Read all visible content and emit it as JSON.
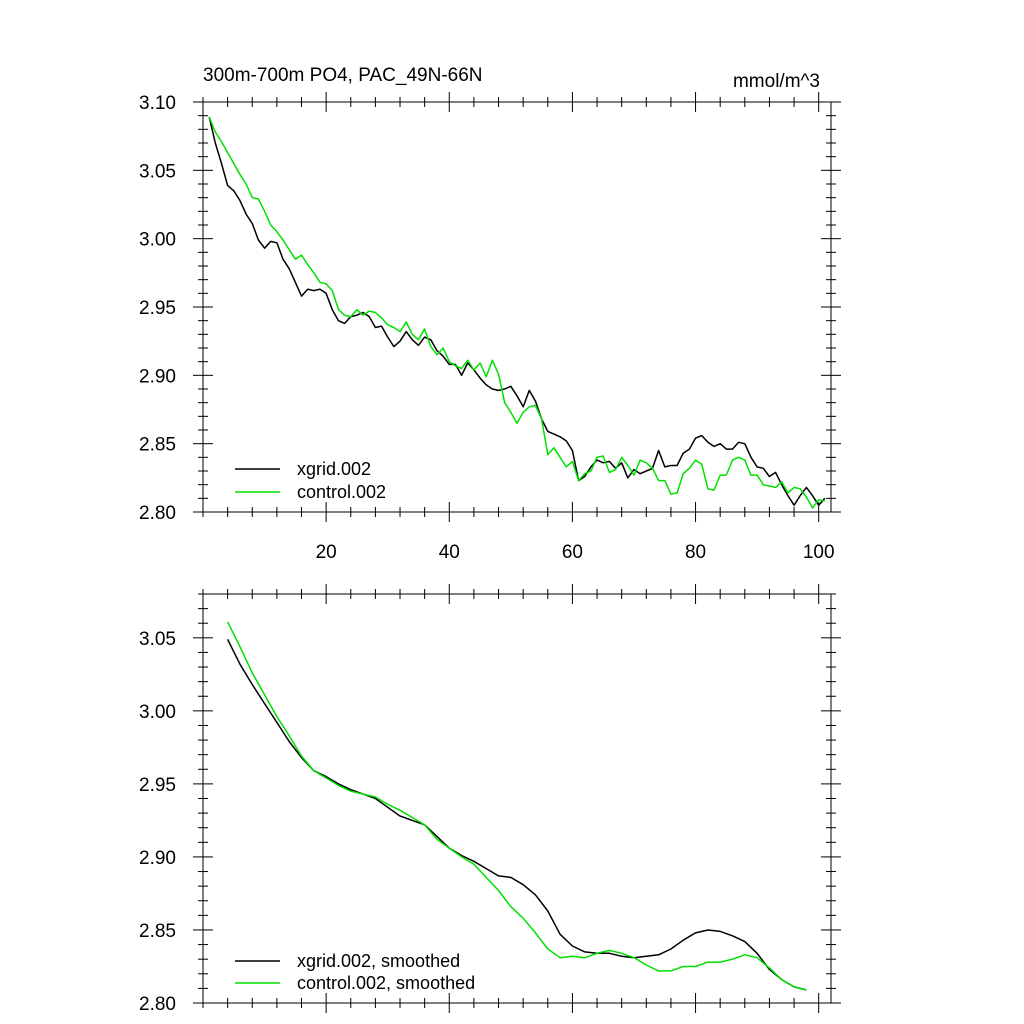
{
  "figure": {
    "title": "300m-700m PO4, PAC_49N-66N",
    "units": "mmol/m^3"
  },
  "chart_data": [
    {
      "type": "line",
      "title": "300m-700m PO4, PAC_49N-66N",
      "units_label": "mmol/m^3",
      "xlabel": "",
      "ylabel": "",
      "xlim": [
        0,
        102
      ],
      "ylim": [
        2.8,
        3.1
      ],
      "xticks": [
        20,
        40,
        60,
        80,
        100
      ],
      "yticks": [
        2.8,
        2.85,
        2.9,
        2.95,
        3.0,
        3.05,
        3.1
      ],
      "ytick_labels": [
        "2.80",
        "2.85",
        "2.90",
        "2.95",
        "3.00",
        "3.05",
        "3.10"
      ],
      "xtick_labels": [
        "20",
        "40",
        "60",
        "80",
        "100"
      ],
      "show_x_labels": true,
      "legend_position": "bottom-left",
      "x": [
        1,
        2,
        3,
        4,
        5,
        6,
        7,
        8,
        9,
        10,
        11,
        12,
        13,
        14,
        15,
        16,
        17,
        18,
        19,
        20,
        21,
        22,
        23,
        24,
        25,
        26,
        27,
        28,
        29,
        30,
        31,
        32,
        33,
        34,
        35,
        36,
        37,
        38,
        39,
        40,
        41,
        42,
        43,
        44,
        45,
        46,
        47,
        48,
        49,
        50,
        51,
        52,
        53,
        54,
        55,
        56,
        57,
        58,
        59,
        60,
        61,
        62,
        63,
        64,
        65,
        66,
        67,
        68,
        69,
        70,
        71,
        72,
        73,
        74,
        75,
        76,
        77,
        78,
        79,
        80,
        81,
        82,
        83,
        84,
        85,
        86,
        87,
        88,
        89,
        90,
        91,
        92,
        93,
        94,
        95,
        96,
        97,
        98,
        99,
        100,
        101
      ],
      "series": [
        {
          "name": "xgrid.002",
          "color": "#000000",
          "values": [
            3.089,
            3.07,
            3.055,
            3.039,
            3.035,
            3.028,
            3.018,
            3.011,
            2.999,
            2.993,
            2.998,
            2.997,
            2.985,
            2.978,
            2.968,
            2.958,
            2.963,
            2.962,
            2.963,
            2.96,
            2.948,
            2.94,
            2.938,
            2.943,
            2.944,
            2.946,
            2.943,
            2.935,
            2.936,
            2.928,
            2.921,
            2.925,
            2.932,
            2.926,
            2.922,
            2.928,
            2.926,
            2.918,
            2.914,
            2.908,
            2.908,
            2.9,
            2.909,
            2.904,
            2.898,
            2.893,
            2.89,
            2.889,
            2.89,
            2.892,
            2.885,
            2.877,
            2.889,
            2.881,
            2.868,
            2.859,
            2.857,
            2.855,
            2.852,
            2.845,
            2.823,
            2.826,
            2.833,
            2.838,
            2.836,
            2.837,
            2.832,
            2.836,
            2.825,
            2.831,
            2.828,
            2.83,
            2.832,
            2.845,
            2.833,
            2.834,
            2.834,
            2.843,
            2.846,
            2.854,
            2.856,
            2.851,
            2.848,
            2.85,
            2.846,
            2.846,
            2.851,
            2.85,
            2.84,
            2.833,
            2.832,
            2.826,
            2.829,
            2.82,
            2.812,
            2.805,
            2.812,
            2.818,
            2.812,
            2.805,
            2.81
          ]
        },
        {
          "name": "control.002",
          "color": "#00e000",
          "values": [
            3.089,
            3.078,
            3.071,
            3.063,
            3.055,
            3.047,
            3.04,
            3.03,
            3.029,
            3.02,
            3.01,
            3.005,
            2.999,
            2.992,
            2.985,
            2.988,
            2.981,
            2.975,
            2.968,
            2.967,
            2.962,
            2.948,
            2.944,
            2.943,
            2.948,
            2.944,
            2.947,
            2.946,
            2.942,
            2.937,
            2.935,
            2.932,
            2.939,
            2.93,
            2.926,
            2.934,
            2.921,
            2.915,
            2.92,
            2.91,
            2.907,
            2.905,
            2.911,
            2.904,
            2.909,
            2.899,
            2.911,
            2.901,
            2.88,
            2.873,
            2.865,
            2.873,
            2.877,
            2.878,
            2.868,
            2.842,
            2.847,
            2.84,
            2.833,
            2.837,
            2.823,
            2.828,
            2.83,
            2.84,
            2.841,
            2.829,
            2.831,
            2.84,
            2.834,
            2.827,
            2.838,
            2.836,
            2.832,
            2.823,
            2.823,
            2.813,
            2.814,
            2.828,
            2.832,
            2.838,
            2.835,
            2.817,
            2.816,
            2.827,
            2.827,
            2.838,
            2.84,
            2.838,
            2.827,
            2.827,
            2.82,
            2.819,
            2.818,
            2.822,
            2.814,
            2.818,
            2.817,
            2.811,
            2.803,
            2.809,
            2.808
          ]
        }
      ],
      "legend": [
        "xgrid.002",
        "control.002"
      ]
    },
    {
      "type": "line",
      "title": "",
      "xlabel": "",
      "ylabel": "",
      "xlim": [
        0,
        102
      ],
      "ylim": [
        2.8,
        3.08
      ],
      "xticks": [
        20,
        40,
        60,
        80,
        100
      ],
      "yticks": [
        2.8,
        2.85,
        2.9,
        2.95,
        3.0,
        3.05
      ],
      "ytick_labels": [
        "2.80",
        "2.85",
        "2.90",
        "2.95",
        "3.00",
        "3.05"
      ],
      "xtick_labels": [],
      "show_x_labels": false,
      "legend_position": "bottom-left",
      "x": [
        4,
        6,
        8,
        10,
        12,
        14,
        16,
        18,
        20,
        22,
        24,
        26,
        28,
        30,
        32,
        34,
        36,
        38,
        40,
        42,
        44,
        46,
        48,
        50,
        52,
        54,
        56,
        58,
        60,
        62,
        64,
        66,
        68,
        70,
        72,
        74,
        76,
        78,
        80,
        82,
        84,
        86,
        88,
        90,
        92,
        94,
        96,
        98
      ],
      "series": [
        {
          "name": "xgrid.002, smoothed",
          "color": "#000000",
          "values": [
            3.049,
            3.032,
            3.018,
            3.005,
            2.992,
            2.979,
            2.968,
            2.959,
            2.955,
            2.95,
            2.946,
            2.943,
            2.94,
            2.934,
            2.928,
            2.925,
            2.922,
            2.914,
            2.906,
            2.901,
            2.897,
            2.892,
            2.887,
            2.886,
            2.881,
            2.874,
            2.863,
            2.847,
            2.839,
            2.835,
            2.834,
            2.834,
            2.832,
            2.831,
            2.832,
            2.833,
            2.837,
            2.843,
            2.848,
            2.85,
            2.849,
            2.846,
            2.842,
            2.834,
            2.823,
            2.816,
            2.811,
            2.809
          ]
        },
        {
          "name": "control.002, smoothed",
          "color": "#00e000",
          "values": [
            3.061,
            3.044,
            3.026,
            3.011,
            2.996,
            2.983,
            2.969,
            2.959,
            2.954,
            2.949,
            2.945,
            2.943,
            2.941,
            2.936,
            2.932,
            2.927,
            2.922,
            2.912,
            2.906,
            2.9,
            2.895,
            2.886,
            2.877,
            2.866,
            2.858,
            2.848,
            2.837,
            2.831,
            2.832,
            2.831,
            2.834,
            2.836,
            2.834,
            2.831,
            2.826,
            2.822,
            2.822,
            2.825,
            2.825,
            2.828,
            2.828,
            2.83,
            2.833,
            2.831,
            2.824,
            2.816,
            2.811,
            2.809
          ]
        }
      ],
      "legend": [
        "xgrid.002, smoothed",
        "control.002, smoothed"
      ]
    }
  ]
}
